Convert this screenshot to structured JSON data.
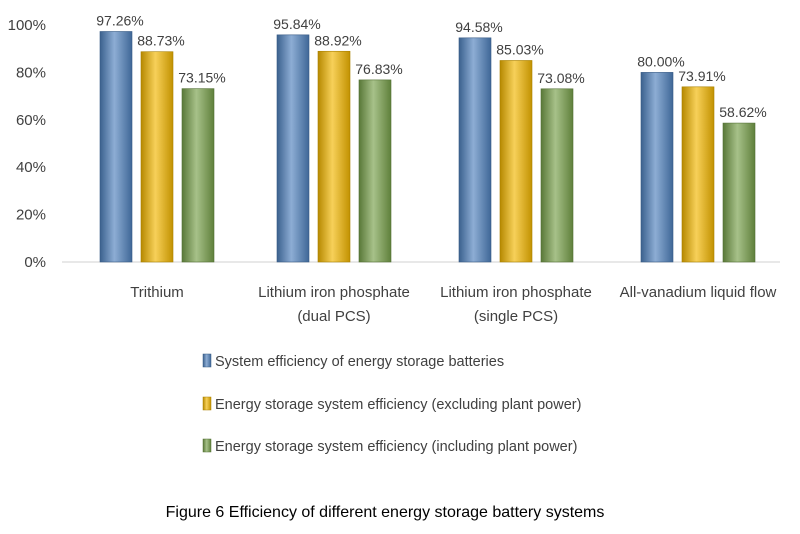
{
  "chart_data": {
    "type": "bar",
    "categories": [
      [
        "Trithium"
      ],
      [
        "Lithium iron phosphate",
        "(dual PCS)"
      ],
      [
        "Lithium iron phosphate",
        "(single PCS)"
      ],
      [
        "All-vanadium liquid flow"
      ]
    ],
    "series": [
      {
        "name": "System efficiency of energy storage batteries",
        "values": [
          97.26,
          95.84,
          94.58,
          80.0
        ],
        "labels": [
          "97.26%",
          "95.84%",
          "94.58%",
          "80.00%"
        ],
        "color": "#4f81bd"
      },
      {
        "name": "Energy storage system efficiency (excluding plant power)",
        "values": [
          88.73,
          88.92,
          85.03,
          73.91
        ],
        "labels": [
          "88.73%",
          "88.92%",
          "85.03%",
          "73.91%"
        ],
        "color": "#f2b700"
      },
      {
        "name": "Energy storage system efficiency (including plant power)",
        "values": [
          73.15,
          76.83,
          73.08,
          58.62
        ],
        "labels": [
          "73.15%",
          "76.83%",
          "73.08%",
          "58.62%"
        ],
        "color": "#77a04a"
      }
    ],
    "yticks": [
      "0%",
      "20%",
      "40%",
      "60%",
      "80%",
      "100%"
    ],
    "ylim": [
      0,
      100
    ],
    "grid": false,
    "legend_position": "bottom",
    "caption": "Figure 6 Efficiency of different energy storage battery systems"
  }
}
